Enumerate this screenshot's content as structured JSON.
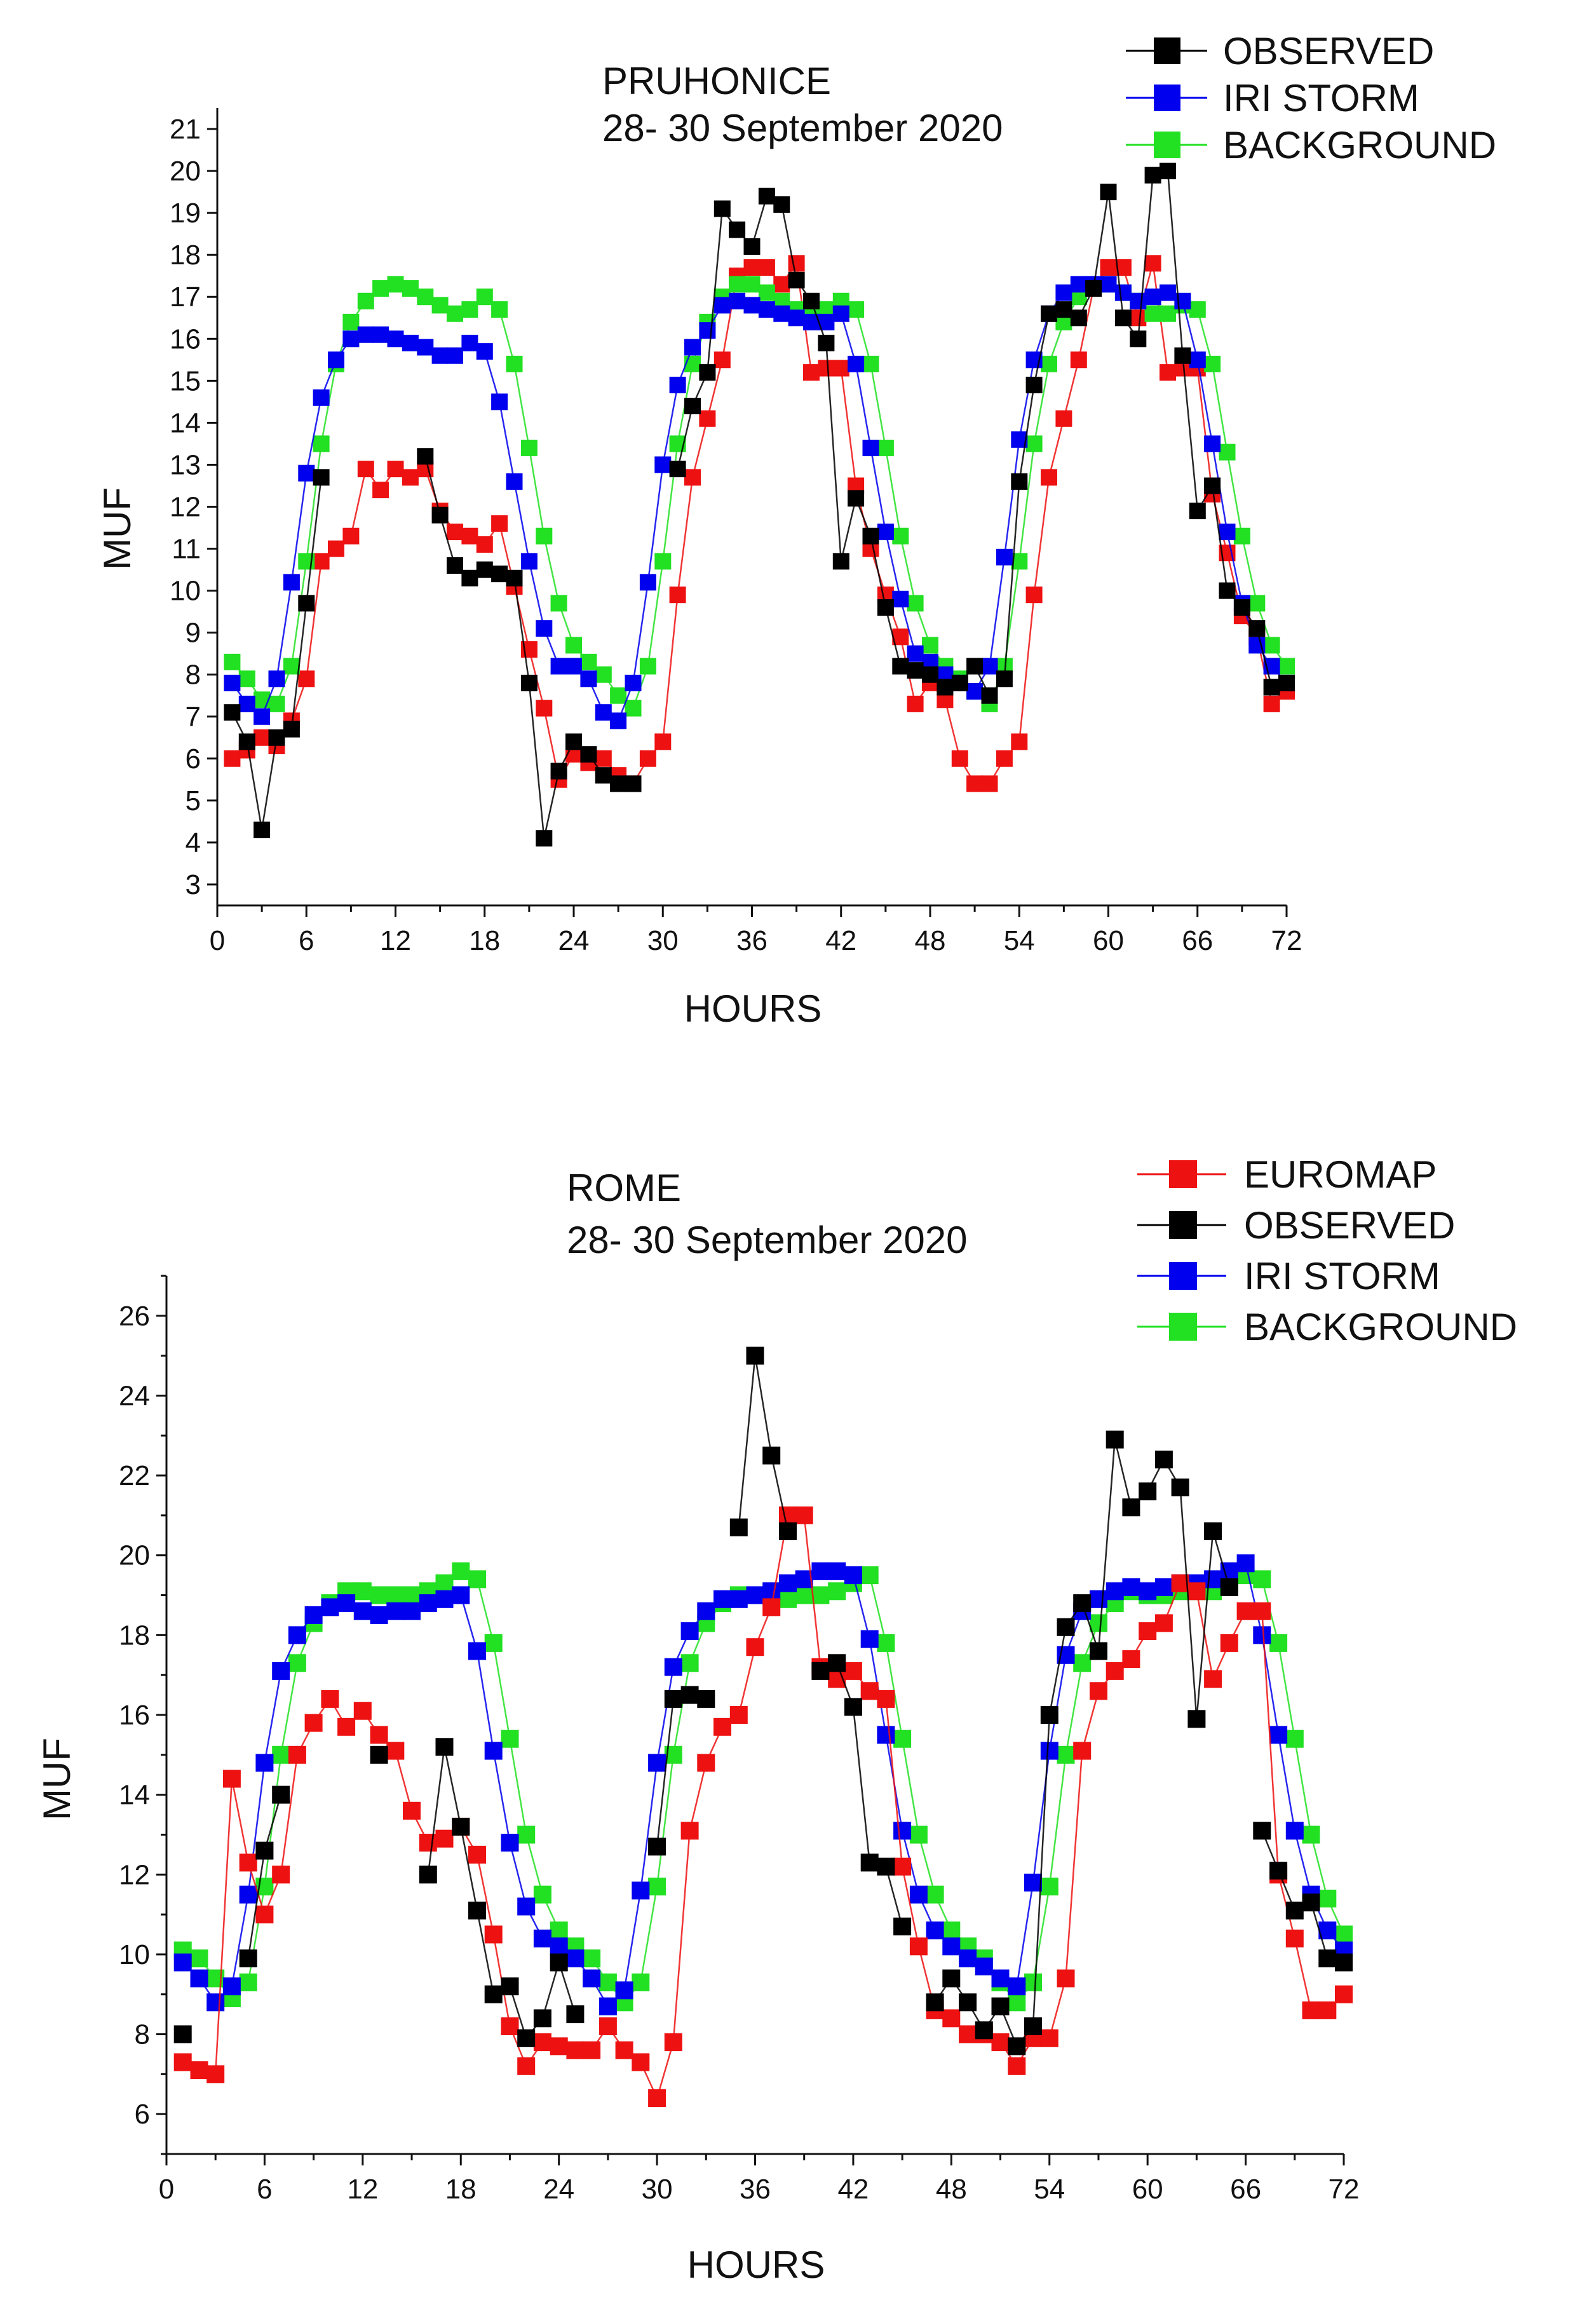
{
  "chart_data": [
    {
      "type": "line",
      "title": "PRUHONICE",
      "subtitle": "28- 30 September 2020",
      "xlabel": "HOURS",
      "ylabel": "MUF",
      "xlim": [
        0,
        72
      ],
      "ylim": [
        2.5,
        21.5
      ],
      "xticks": [
        0,
        6,
        12,
        18,
        24,
        30,
        36,
        42,
        48,
        54,
        60,
        66,
        72
      ],
      "yticks": [
        3,
        4,
        5,
        6,
        7,
        8,
        9,
        10,
        11,
        12,
        13,
        14,
        15,
        16,
        17,
        18,
        19,
        20,
        21
      ],
      "legend": [
        "OBSERVED",
        "IRI STORM",
        "BACKGROUND"
      ],
      "legend_position": "top-right",
      "series": [
        {
          "name": "OBSERVED",
          "color": "#000000",
          "values": [
            7.1,
            6.4,
            4.3,
            6.5,
            6.7,
            9.7,
            12.7,
            null,
            null,
            null,
            null,
            null,
            null,
            13.2,
            11.8,
            10.6,
            10.3,
            10.5,
            10.4,
            10.3,
            7.8,
            4.1,
            5.7,
            6.4,
            6.1,
            5.6,
            5.4,
            5.4,
            null,
            null,
            12.9,
            14.4,
            15.2,
            19.1,
            18.6,
            18.2,
            19.4,
            19.2,
            17.4,
            16.9,
            15.9,
            10.7,
            12.2,
            11.3,
            9.6,
            8.2,
            8.1,
            8.0,
            7.7,
            7.8,
            8.2,
            7.5,
            7.9,
            12.6,
            14.9,
            16.6,
            16.7,
            16.5,
            17.2,
            19.5,
            16.5,
            16.0,
            19.9,
            20.0,
            15.6,
            11.9,
            12.5,
            10.0,
            9.6,
            9.1,
            7.7,
            7.8
          ]
        },
        {
          "name": "IRI STORM",
          "color": "#0000ee",
          "values": [
            7.8,
            7.3,
            7.0,
            7.9,
            10.2,
            12.8,
            14.6,
            15.5,
            16.0,
            16.1,
            16.1,
            16.0,
            15.9,
            15.8,
            15.6,
            15.6,
            15.9,
            15.7,
            14.5,
            12.6,
            10.7,
            9.1,
            8.2,
            8.2,
            7.9,
            7.1,
            6.9,
            7.8,
            10.2,
            13.0,
            14.9,
            15.8,
            16.2,
            16.8,
            16.9,
            16.8,
            16.7,
            16.6,
            16.5,
            16.4,
            16.4,
            16.6,
            15.4,
            13.4,
            11.4,
            9.8,
            8.5,
            8.3,
            8.0,
            7.8,
            7.6,
            8.2,
            10.8,
            13.6,
            15.5,
            16.6,
            17.1,
            17.3,
            17.3,
            17.3,
            17.1,
            16.9,
            17.0,
            17.1,
            16.9,
            15.5,
            13.5,
            11.4,
            9.7,
            8.7,
            8.2,
            7.8
          ]
        },
        {
          "name": "BACKGROUND",
          "color": "#22e022",
          "values": [
            8.3,
            7.9,
            7.4,
            7.3,
            8.2,
            10.7,
            13.5,
            15.4,
            16.4,
            16.9,
            17.2,
            17.3,
            17.2,
            17.0,
            16.8,
            16.6,
            16.7,
            17.0,
            16.7,
            15.4,
            13.4,
            11.3,
            9.7,
            8.7,
            8.3,
            8.0,
            7.5,
            7.2,
            8.2,
            10.7,
            13.5,
            15.4,
            16.4,
            17.0,
            17.3,
            17.3,
            17.1,
            16.9,
            16.7,
            16.6,
            16.7,
            16.9,
            16.7,
            15.4,
            13.4,
            11.3,
            9.7,
            8.7,
            8.2,
            7.9,
            7.6,
            7.3,
            8.2,
            10.7,
            13.5,
            15.4,
            16.4,
            17.0,
            17.2,
            17.3,
            17.1,
            16.9,
            16.6,
            16.6,
            16.8,
            16.7,
            15.4,
            13.3,
            11.3,
            9.7,
            8.7,
            8.2
          ]
        }
      ],
      "extra_series": [
        {
          "name": "EUROMAP",
          "color": "#ee1111",
          "values": [
            6.0,
            6.2,
            6.5,
            6.3,
            6.9,
            7.9,
            10.7,
            11.0,
            11.3,
            12.9,
            12.4,
            12.9,
            12.7,
            12.9,
            11.9,
            11.4,
            11.3,
            11.1,
            11.6,
            10.1,
            8.6,
            7.2,
            5.5,
            6.1,
            5.9,
            6.0,
            5.6,
            5.4,
            6.0,
            6.4,
            9.9,
            12.7,
            14.1,
            15.5,
            17.5,
            17.7,
            17.7,
            17.3,
            17.8,
            15.2,
            15.3,
            15.3,
            12.5,
            11.0,
            9.9,
            8.9,
            7.3,
            7.8,
            7.4,
            6.0,
            5.4,
            5.4,
            6.0,
            6.4,
            9.9,
            12.7,
            14.1,
            15.5,
            17.2,
            17.7,
            17.7,
            16.5,
            17.8,
            15.2,
            15.3,
            15.3,
            12.3,
            10.9,
            9.4,
            8.9,
            7.3,
            7.6
          ]
        }
      ]
    },
    {
      "type": "line",
      "title": "ROME",
      "subtitle": "28- 30 September 2020",
      "xlabel": "HOURS",
      "ylabel": "MUF",
      "xlim": [
        0,
        72
      ],
      "ylim": [
        5,
        27
      ],
      "xticks": [
        0,
        6,
        12,
        18,
        24,
        30,
        36,
        42,
        48,
        54,
        60,
        66,
        72
      ],
      "yticks": [
        6,
        8,
        10,
        12,
        14,
        16,
        18,
        20,
        22,
        24,
        26
      ],
      "legend": [
        "EUROMAP",
        "OBSERVED",
        "IRI STORM",
        "BACKGROUND"
      ],
      "legend_position": "top-right",
      "series": [
        {
          "name": "EUROMAP",
          "color": "#ee1111",
          "values": [
            7.3,
            7.1,
            7.0,
            14.4,
            12.3,
            11.0,
            12.0,
            15.0,
            15.8,
            16.4,
            15.7,
            16.1,
            15.5,
            15.1,
            13.6,
            12.8,
            12.9,
            13.2,
            12.5,
            10.5,
            8.2,
            7.2,
            7.8,
            7.7,
            7.6,
            7.6,
            8.2,
            7.6,
            7.3,
            6.4,
            7.8,
            13.1,
            14.8,
            15.7,
            16.0,
            17.7,
            18.7,
            21.0,
            21.0,
            17.2,
            16.9,
            17.1,
            16.6,
            16.4,
            12.2,
            10.2,
            8.6,
            8.4,
            8.0,
            8.0,
            7.8,
            7.2,
            7.9,
            7.9,
            9.4,
            15.1,
            16.6,
            17.1,
            17.4,
            18.1,
            18.3,
            19.3,
            19.1,
            16.9,
            17.8,
            18.6,
            18.6,
            12.0,
            10.4,
            8.6,
            8.6,
            9.0
          ]
        },
        {
          "name": "OBSERVED",
          "color": "#000000",
          "values": [
            8.0,
            null,
            null,
            null,
            9.9,
            12.6,
            14.0,
            null,
            null,
            null,
            null,
            null,
            15.0,
            null,
            null,
            12.0,
            15.2,
            13.2,
            11.1,
            9.0,
            9.2,
            7.9,
            8.4,
            9.8,
            8.5,
            null,
            null,
            null,
            null,
            12.7,
            16.4,
            16.5,
            16.4,
            null,
            20.7,
            25.0,
            22.5,
            20.6,
            null,
            17.1,
            17.3,
            16.2,
            12.3,
            12.2,
            10.7,
            null,
            8.8,
            9.4,
            8.8,
            8.1,
            8.7,
            7.7,
            8.2,
            16.0,
            18.2,
            18.8,
            17.6,
            22.9,
            21.2,
            21.6,
            22.4,
            21.7,
            15.9,
            20.6,
            19.2,
            null,
            13.1,
            12.1,
            11.1,
            11.3,
            9.9,
            9.8
          ]
        },
        {
          "name": "IRI STORM",
          "color": "#0000ee",
          "values": [
            9.8,
            9.4,
            8.8,
            9.2,
            11.5,
            14.8,
            17.1,
            18.0,
            18.5,
            18.7,
            18.8,
            18.6,
            18.5,
            18.6,
            18.6,
            18.8,
            18.9,
            19.0,
            17.6,
            15.1,
            12.8,
            11.2,
            10.4,
            10.2,
            9.9,
            9.4,
            8.7,
            9.1,
            11.6,
            14.8,
            17.2,
            18.1,
            18.6,
            18.9,
            18.9,
            19.0,
            19.1,
            19.3,
            19.4,
            19.6,
            19.6,
            19.5,
            17.9,
            15.5,
            13.1,
            11.5,
            10.6,
            10.2,
            9.9,
            9.7,
            9.4,
            9.2,
            11.8,
            15.1,
            17.5,
            18.6,
            18.9,
            19.1,
            19.2,
            19.1,
            19.2,
            19.3,
            19.3,
            19.4,
            19.6,
            19.8,
            18.0,
            15.5,
            13.1,
            11.5,
            10.6,
            10.1
          ]
        },
        {
          "name": "BACKGROUND",
          "color": "#22e022",
          "values": [
            10.1,
            9.9,
            9.4,
            8.9,
            9.3,
            11.7,
            15.0,
            17.3,
            18.3,
            18.8,
            19.1,
            19.1,
            19.0,
            19.0,
            19.0,
            19.1,
            19.3,
            19.6,
            19.4,
            17.8,
            15.4,
            13.0,
            11.5,
            10.6,
            10.2,
            9.9,
            9.3,
            8.8,
            9.3,
            11.7,
            15.0,
            17.3,
            18.3,
            18.8,
            19.0,
            19.0,
            19.0,
            18.9,
            19.0,
            19.0,
            19.1,
            19.3,
            19.5,
            17.8,
            15.4,
            13.0,
            11.5,
            10.6,
            10.2,
            9.9,
            9.3,
            8.8,
            9.3,
            11.7,
            15.0,
            17.3,
            18.3,
            18.8,
            19.1,
            19.0,
            19.0,
            19.1,
            19.1,
            19.1,
            19.3,
            19.5,
            19.4,
            17.8,
            15.4,
            13.0,
            11.4,
            10.5
          ]
        }
      ]
    }
  ]
}
